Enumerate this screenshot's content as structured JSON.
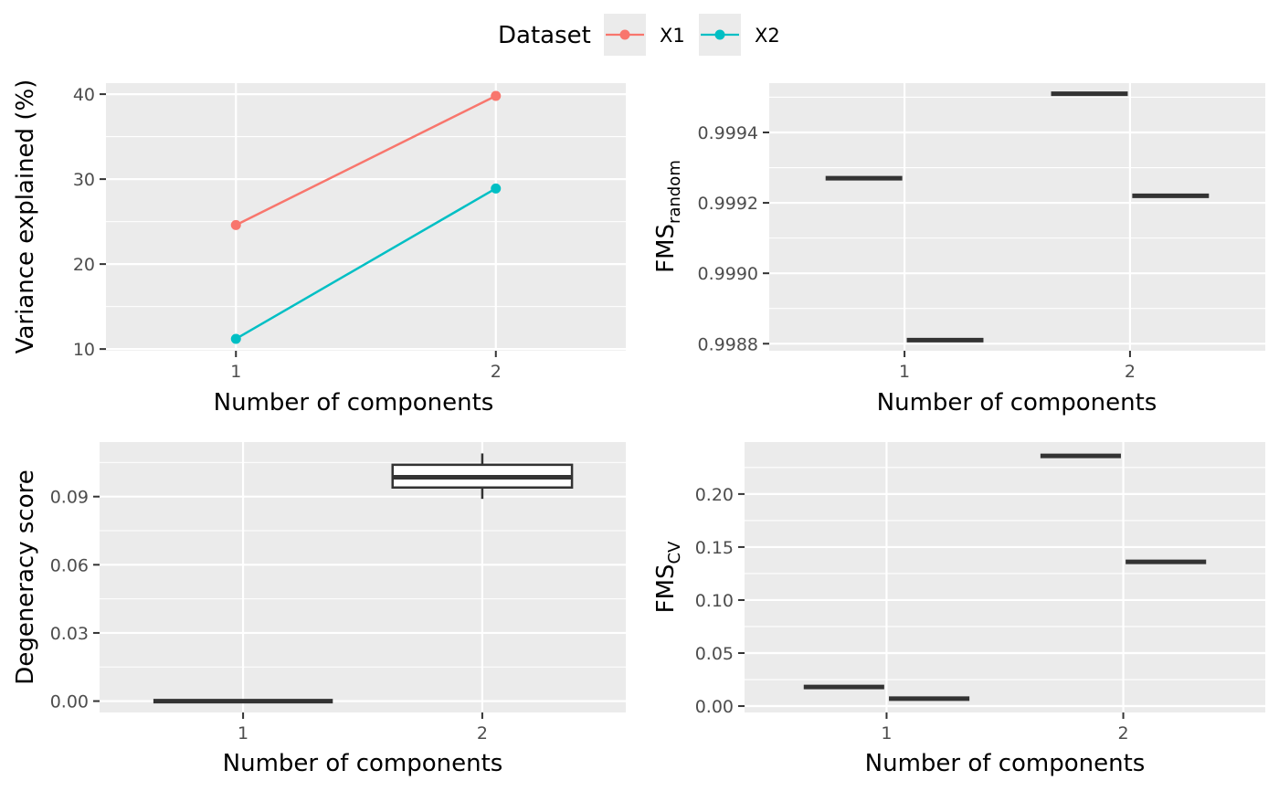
{
  "legend": {
    "title": "Dataset",
    "items": [
      {
        "label": "X1",
        "color": "#F8766D"
      },
      {
        "label": "X2",
        "color": "#00BFC4"
      }
    ]
  },
  "chart_data": [
    {
      "id": "variance",
      "type": "line",
      "title": "",
      "xlabel": "Number of components",
      "ylabel": "Variance explained (%)",
      "x": [
        1,
        2
      ],
      "xlim": [
        0.5,
        2.5
      ],
      "ylim": [
        9.8,
        41.3
      ],
      "yticks": [
        10,
        20,
        30,
        40
      ],
      "series": [
        {
          "name": "X1",
          "color": "#F8766D",
          "values": [
            24.6,
            39.8
          ]
        },
        {
          "name": "X2",
          "color": "#00BFC4",
          "values": [
            11.2,
            28.9
          ]
        }
      ]
    },
    {
      "id": "fms-random",
      "type": "scatter",
      "title": "",
      "xlabel": "Number of components",
      "ylabel_main": "FMS",
      "ylabel_sub": "random",
      "x_categories": [
        1,
        2
      ],
      "xlim": [
        0.4,
        2.6
      ],
      "ylim": [
        0.99878,
        0.99954
      ],
      "yticks": [
        0.9988,
        0.999,
        0.9992,
        0.9994
      ],
      "yticklabels": [
        "0.9988",
        "0.9990",
        "0.9992",
        "0.9994"
      ],
      "segments": [
        {
          "x0": 0.65,
          "x1": 0.99,
          "y": 0.99927
        },
        {
          "x0": 1.01,
          "x1": 1.35,
          "y": 0.99881
        },
        {
          "x0": 1.65,
          "x1": 1.99,
          "y": 0.99951
        },
        {
          "x0": 2.01,
          "x1": 2.35,
          "y": 0.99922
        }
      ]
    },
    {
      "id": "degeneracy",
      "type": "box",
      "title": "",
      "xlabel": "Number of components",
      "ylabel": "Degeneracy score",
      "x_categories": [
        1,
        2
      ],
      "xlim": [
        0.4,
        2.6
      ],
      "ylim": [
        -0.005,
        0.114
      ],
      "yticks": [
        0,
        0.03,
        0.06,
        0.09
      ],
      "yticklabels": [
        "0.00",
        "0.03",
        "0.06",
        "0.09"
      ],
      "segments": [
        {
          "x0": 0.625,
          "x1": 1.375,
          "y": 0.0
        }
      ],
      "boxes": [
        {
          "x": 2,
          "x0": 1.625,
          "x1": 2.375,
          "min": 0.089,
          "q1": 0.094,
          "median": 0.0985,
          "q3": 0.104,
          "max": 0.109
        }
      ]
    },
    {
      "id": "fms-cv",
      "type": "scatter",
      "title": "",
      "xlabel": "Number of components",
      "ylabel_main": "FMS",
      "ylabel_sub": "CV",
      "x_categories": [
        1,
        2
      ],
      "xlim": [
        0.4,
        2.6
      ],
      "ylim": [
        -0.006,
        0.249
      ],
      "yticks": [
        0,
        0.05,
        0.1,
        0.15,
        0.2
      ],
      "yticklabels": [
        "0.00",
        "0.05",
        "0.10",
        "0.15",
        "0.20"
      ],
      "segments": [
        {
          "x0": 0.65,
          "x1": 0.99,
          "y": 0.018
        },
        {
          "x0": 1.01,
          "x1": 1.35,
          "y": 0.007
        },
        {
          "x0": 1.65,
          "x1": 1.99,
          "y": 0.236
        },
        {
          "x0": 2.01,
          "x1": 2.35,
          "y": 0.136
        }
      ]
    }
  ]
}
